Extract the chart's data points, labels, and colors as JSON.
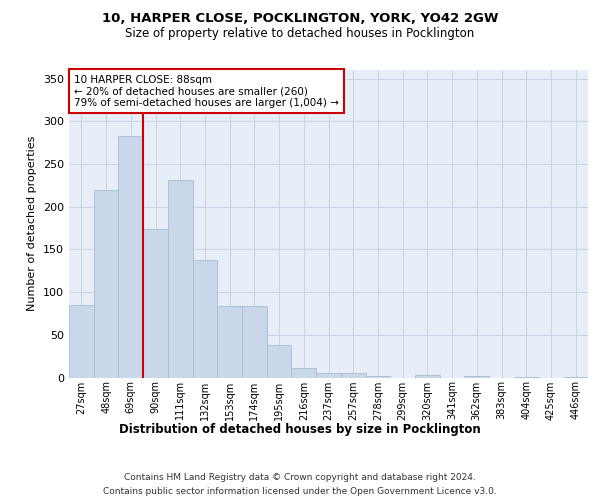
{
  "title1": "10, HARPER CLOSE, POCKLINGTON, YORK, YO42 2GW",
  "title2": "Size of property relative to detached houses in Pocklington",
  "xlabel": "Distribution of detached houses by size in Pocklington",
  "ylabel": "Number of detached properties",
  "footnote1": "Contains HM Land Registry data © Crown copyright and database right 2024.",
  "footnote2": "Contains public sector information licensed under the Open Government Licence v3.0.",
  "bar_labels": [
    "27sqm",
    "48sqm",
    "69sqm",
    "90sqm",
    "111sqm",
    "132sqm",
    "153sqm",
    "174sqm",
    "195sqm",
    "216sqm",
    "237sqm",
    "257sqm",
    "278sqm",
    "299sqm",
    "320sqm",
    "341sqm",
    "362sqm",
    "383sqm",
    "404sqm",
    "425sqm",
    "446sqm"
  ],
  "bar_values": [
    85,
    219,
    283,
    174,
    231,
    138,
    84,
    84,
    38,
    11,
    5,
    5,
    2,
    0,
    3,
    0,
    2,
    0,
    1,
    0,
    1
  ],
  "bar_color": "#c8d8ea",
  "bar_edge_color": "#a8bcd0",
  "annotation_line1": "10 HARPER CLOSE: 88sqm",
  "annotation_line2": "← 20% of detached houses are smaller (260)",
  "annotation_line3": "79% of semi-detached houses are larger (1,004) →",
  "annotation_box_color": "#ffffff",
  "annotation_border_color": "#cc0000",
  "vline_color": "#cc0000",
  "ylim": [
    0,
    360
  ],
  "yticks": [
    0,
    50,
    100,
    150,
    200,
    250,
    300,
    350
  ],
  "grid_color": "#c8d4e4",
  "plot_bg_color": "#e8eef8"
}
